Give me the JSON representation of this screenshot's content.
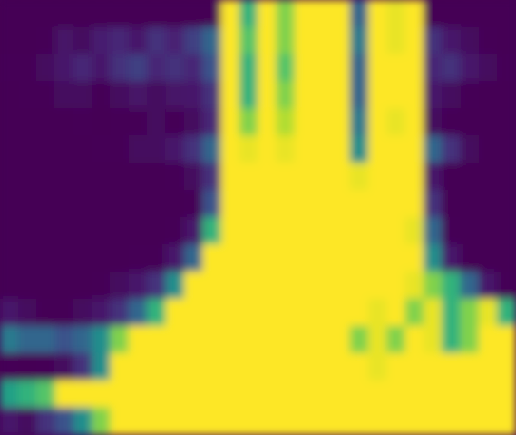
{
  "chart_data": {
    "type": "heatmap",
    "tick_labels": false,
    "clim": [
      0,
      1
    ],
    "cells": [
      [
        0.05,
        0.05,
        0.06,
        0.08,
        0.07,
        0.06,
        0.08,
        0.07,
        0.06,
        0.08,
        0.07,
        0.06,
        1,
        0.5,
        1,
        0.6,
        1,
        1,
        0.85,
        0.3,
        1,
        0.7,
        0.95,
        0.08,
        0.06,
        0.05,
        0.05,
        0.05
      ],
      [
        0.06,
        0.08,
        0.1,
        0.14,
        0.12,
        0.16,
        0.18,
        0.15,
        0.2,
        0.17,
        0.22,
        0.3,
        1,
        0.55,
        1,
        0.6,
        1,
        0.95,
        0.9,
        0.35,
        1,
        0.7,
        0.95,
        0.2,
        0.15,
        0.12,
        0.1,
        0.08
      ],
      [
        0.1,
        0.1,
        0.12,
        0.15,
        0.18,
        0.15,
        0.2,
        0.22,
        0.18,
        0.2,
        0.18,
        0.25,
        0.95,
        0.5,
        1,
        0.55,
        1,
        0.95,
        0.85,
        0.3,
        0.95,
        0.75,
        0.9,
        0.18,
        0.2,
        0.15,
        0.12,
        0.1
      ],
      [
        0.08,
        0.1,
        0.1,
        0.12,
        0.12,
        0.1,
        0.12,
        0.14,
        0.12,
        0.14,
        0.15,
        0.2,
        1,
        0.5,
        1,
        0.6,
        0.95,
        1,
        0.9,
        0.3,
        1,
        0.8,
        1,
        0.15,
        0.12,
        0.1,
        0.08,
        0.08
      ],
      [
        0.06,
        0.06,
        0.08,
        0.08,
        0.1,
        0.08,
        0.1,
        0.1,
        0.12,
        0.1,
        0.12,
        0.18,
        1,
        0.6,
        1,
        0.65,
        1,
        0.95,
        0.85,
        0.35,
        1,
        0.7,
        0.9,
        0.12,
        0.1,
        0.08,
        0.06,
        0.06
      ],
      [
        0.06,
        0.06,
        0.06,
        0.08,
        0.08,
        0.1,
        0.1,
        0.12,
        0.12,
        0.15,
        0.2,
        0.3,
        1,
        0.7,
        1,
        0.7,
        1,
        0.9,
        0.9,
        0.4,
        1,
        0.85,
        1,
        0.3,
        0.2,
        0.12,
        0.08,
        0.06
      ],
      [
        0.04,
        0.04,
        0.05,
        0.05,
        0.06,
        0.06,
        0.06,
        0.08,
        0.08,
        0.1,
        0.12,
        0.2,
        0.95,
        0.85,
        1,
        0.9,
        1,
        0.85,
        0.9,
        0.7,
        0.95,
        0.9,
        0.95,
        0.15,
        0.06,
        0.05,
        0.04,
        0.04
      ],
      [
        0.04,
        0.04,
        0.04,
        0.05,
        0.05,
        0.05,
        0.06,
        0.06,
        0.08,
        0.08,
        0.1,
        0.25,
        1,
        0.9,
        0.85,
        0.95,
        0.9,
        0.95,
        0.9,
        0.85,
        1,
        0.9,
        0.8,
        0.2,
        0.06,
        0.05,
        0.04,
        0.04
      ],
      [
        0.04,
        0.04,
        0.05,
        0.05,
        0.05,
        0.06,
        0.06,
        0.08,
        0.08,
        0.1,
        0.15,
        0.5,
        0.95,
        0.9,
        1,
        0.95,
        0.9,
        1,
        0.95,
        0.9,
        0.85,
        0.95,
        0.7,
        0.3,
        0.1,
        0.06,
        0.05,
        0.05
      ],
      [
        0.05,
        0.05,
        0.06,
        0.06,
        0.06,
        0.08,
        0.08,
        0.1,
        0.1,
        0.15,
        0.3,
        0.85,
        1,
        0.95,
        1,
        1,
        0.95,
        1,
        0.9,
        0.95,
        1,
        0.85,
        0.8,
        0.4,
        0.15,
        0.08,
        0.06,
        0.05
      ],
      [
        0.08,
        0.06,
        0.06,
        0.08,
        0.08,
        0.1,
        0.12,
        0.15,
        0.2,
        0.4,
        0.8,
        1,
        1,
        1,
        1,
        1,
        1,
        0.95,
        0.9,
        0.85,
        0.9,
        0.8,
        0.7,
        0.6,
        0.5,
        0.3,
        0.15,
        0.1
      ],
      [
        0.15,
        0.12,
        0.1,
        0.1,
        0.12,
        0.15,
        0.2,
        0.3,
        0.5,
        0.9,
        1,
        1,
        1,
        1,
        1,
        1,
        0.9,
        1,
        0.8,
        0.85,
        0.7,
        0.8,
        0.6,
        0.7,
        0.5,
        0.6,
        0.7,
        0.5
      ],
      [
        0.35,
        0.3,
        0.3,
        0.25,
        0.3,
        0.4,
        0.6,
        0.85,
        0.95,
        1,
        1,
        1,
        1,
        1,
        1,
        1,
        1,
        0.9,
        0.8,
        0.6,
        0.7,
        0.6,
        0.8,
        0.7,
        0.5,
        0.6,
        0.9,
        0.8
      ],
      [
        0.1,
        0.08,
        0.1,
        0.12,
        0.2,
        0.4,
        0.8,
        1,
        1,
        1,
        1,
        1,
        1,
        1,
        1,
        0.9,
        0.85,
        0.8,
        0.9,
        0.8,
        0.7,
        0.9,
        0.8,
        0.85,
        0.9,
        0.8,
        0.85,
        0.9
      ],
      [
        0.45,
        0.5,
        0.55,
        0.75,
        0.95,
        1,
        1,
        1,
        1,
        1,
        1,
        1,
        1,
        1,
        1,
        1,
        1,
        1,
        1,
        0.9,
        0.9,
        1,
        1,
        1,
        0.9,
        0.95,
        1,
        1
      ],
      [
        0.15,
        0.12,
        0.2,
        0.25,
        0.4,
        0.6,
        0.85,
        1,
        1,
        1,
        1,
        1,
        1,
        0.95,
        0.9,
        1,
        1,
        1,
        0.85,
        0.9,
        1,
        0.95,
        1,
        0.9,
        1,
        0.85,
        0.95,
        0.9
      ]
    ]
  }
}
